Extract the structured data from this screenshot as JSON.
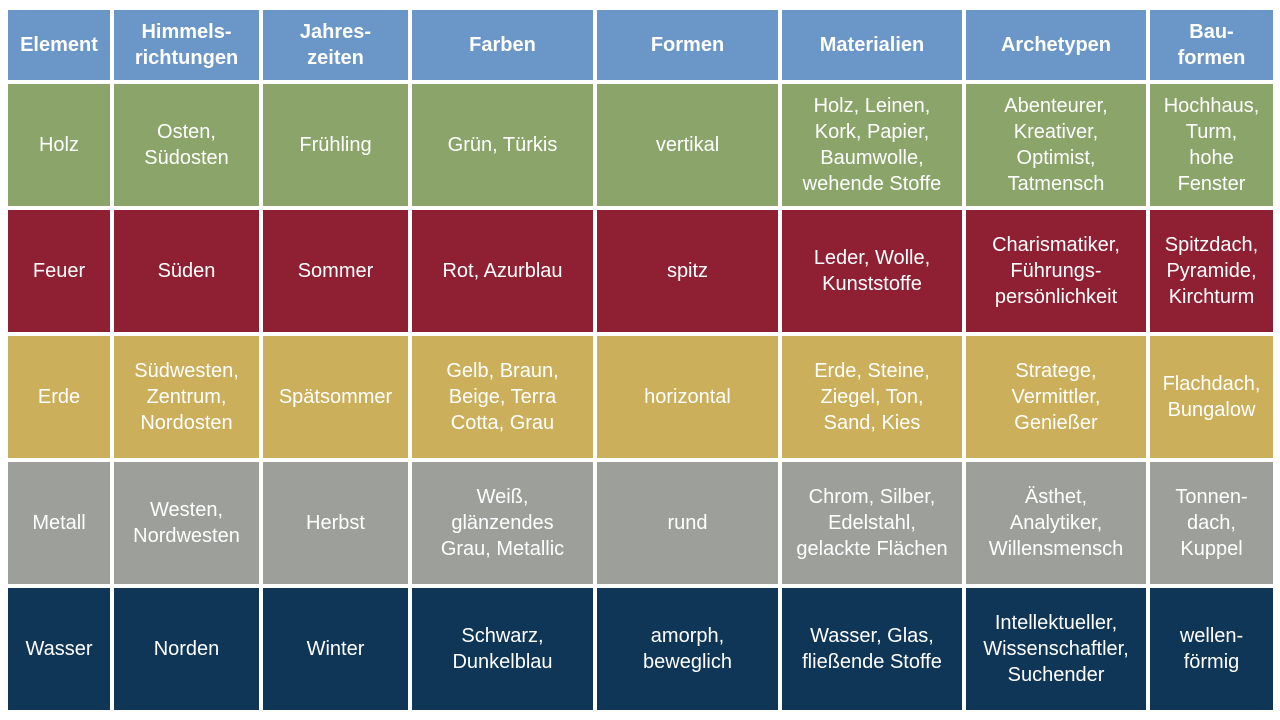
{
  "headers": [
    "Element",
    "Himmels-\nrichtungen",
    "Jahres-\nzeiten",
    "Farben",
    "Formen",
    "Materialien",
    "Archetypen",
    "Bau-\nformen"
  ],
  "rows": [
    {
      "class": "holz",
      "color": "#8ba46a",
      "cells": [
        "Holz",
        "Osten,\nSüdosten",
        "Frühling",
        "Grün, Türkis",
        "vertikal",
        "Holz, Leinen,\nKork, Papier,\nBaumwolle,\nwehende Stoffe",
        "Abenteurer,\nKreativer,\nOptimist,\nTatmensch",
        "Hochhaus,\nTurm,\nhohe\nFenster"
      ]
    },
    {
      "class": "feuer",
      "color": "#8f2034",
      "cells": [
        "Feuer",
        "Süden",
        "Sommer",
        "Rot, Azurblau",
        "spitz",
        "Leder, Wolle,\nKunststoffe",
        "Charismatiker,\nFührungs-\npersönlichkeit",
        "Spitzdach,\nPyramide,\nKirchturm"
      ]
    },
    {
      "class": "erde",
      "color": "#cbaf5a",
      "cells": [
        "Erde",
        "Südwesten,\nZentrum,\nNordosten",
        "Spätsommer",
        "Gelb, Braun,\nBeige, Terra\nCotta, Grau",
        "horizontal",
        "Erde, Steine,\nZiegel, Ton,\nSand, Kies",
        "Stratege,\nVermittler,\nGenießer",
        "Flachdach,\nBungalow"
      ]
    },
    {
      "class": "metall",
      "color": "#9d9f9b",
      "cells": [
        "Metall",
        "Westen,\nNordwesten",
        "Herbst",
        "Weiß,\nglänzendes\nGrau, Metallic",
        "rund",
        "Chrom, Silber,\nEdelstahl,\ngelackte Flächen",
        "Ästhet,\nAnalytiker,\nWillensmensch",
        "Tonnen-\ndach,\nKuppel"
      ]
    },
    {
      "class": "wasser",
      "color": "#0f3657",
      "cells": [
        "Wasser",
        "Norden",
        "Winter",
        "Schwarz,\nDunkelblau",
        "amorph,\nbeweglich",
        "Wasser, Glas,\nfließende Stoffe",
        "Intellektueller,\nWissenschaftler,\nSuchender",
        "wellen-\nförmig"
      ]
    }
  ],
  "header_color": "#6a96c8"
}
